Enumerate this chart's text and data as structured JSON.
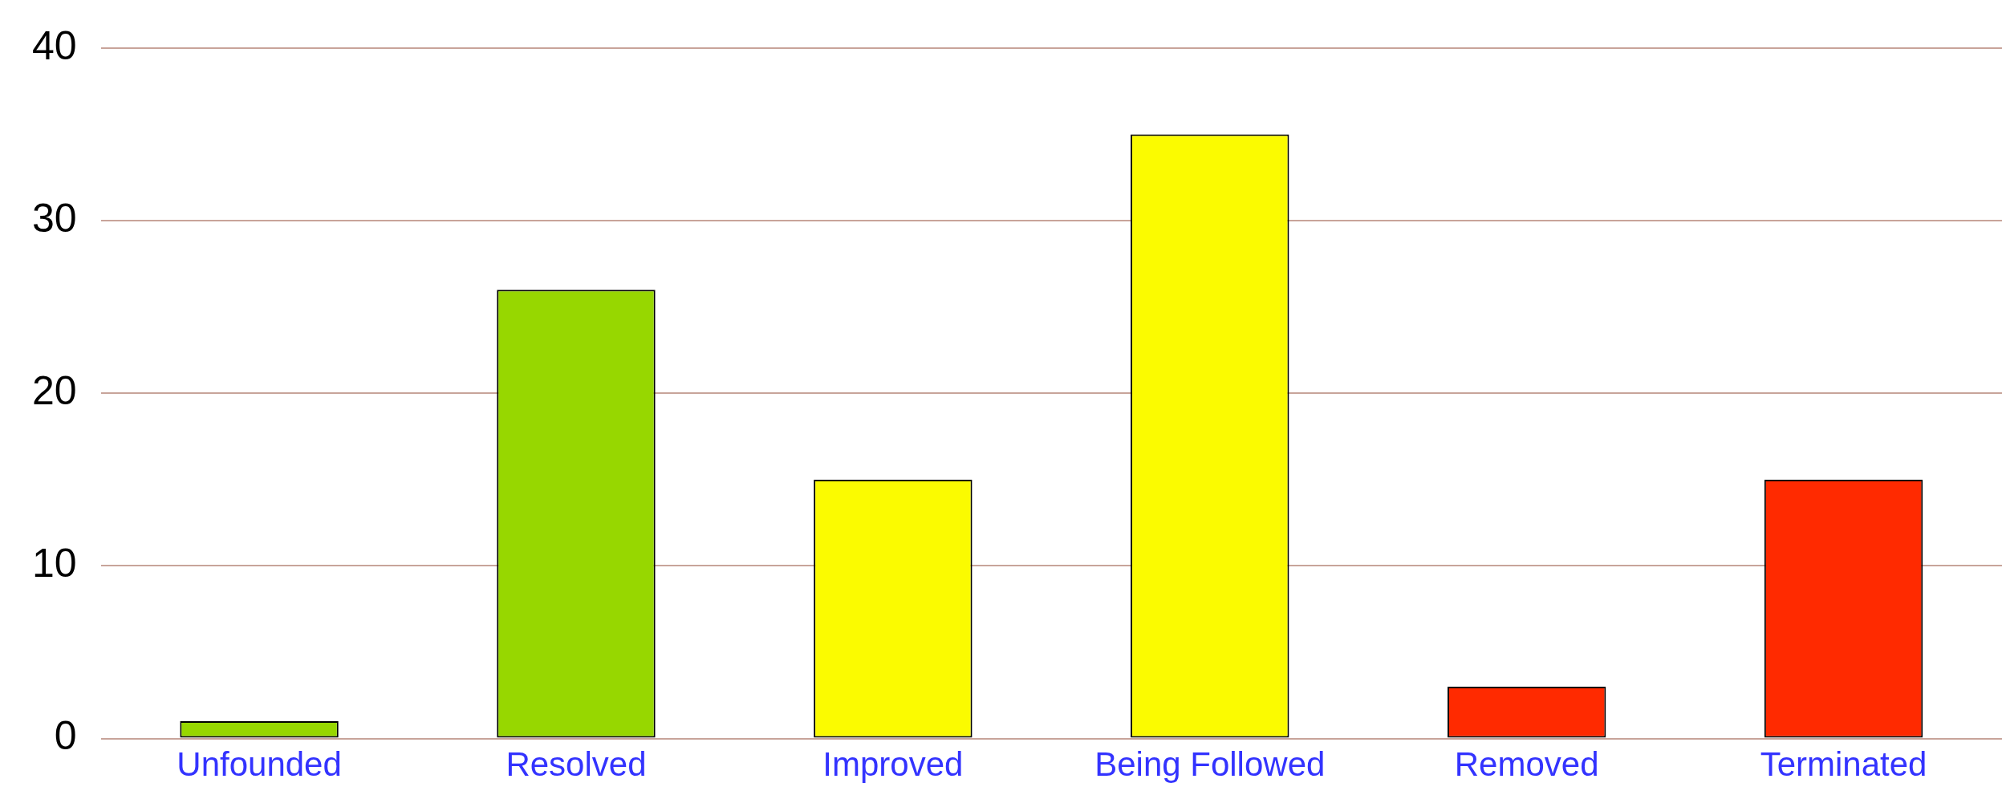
{
  "chart_data": {
    "type": "bar",
    "categories": [
      "Unfounded",
      "Resolved",
      "Improved",
      "Being Followed",
      "Removed",
      "Terminated"
    ],
    "values": [
      1,
      26,
      15,
      35,
      3,
      15
    ],
    "colors": [
      "#97d700",
      "#97d700",
      "#fbfb00",
      "#fbfb00",
      "#ff2a00",
      "#ff2a00"
    ],
    "ylim": [
      0,
      40
    ],
    "yticks": [
      0,
      10,
      20,
      30,
      40
    ],
    "grid": "y"
  }
}
